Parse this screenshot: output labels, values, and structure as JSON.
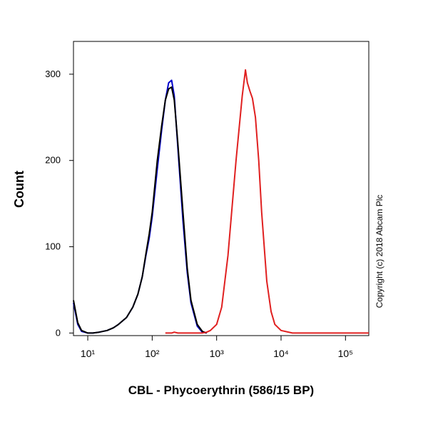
{
  "chart_data": {
    "type": "line",
    "xlabel": "CBL - Phycoerythrin (586/15 BP)",
    "ylabel": "Count",
    "annotation": "Copyright (c) 2018 Abcam Plc",
    "xscale": "log",
    "xlim": [
      6,
      230000
    ],
    "ylim": [
      -3,
      338
    ],
    "xticks": [
      {
        "value": 10,
        "label": "10¹"
      },
      {
        "value": 100,
        "label": "10²"
      },
      {
        "value": 1000,
        "label": "10³"
      },
      {
        "value": 10000,
        "label": "10⁴"
      },
      {
        "value": 100000,
        "label": "10⁵"
      }
    ],
    "yticks": [
      0,
      100,
      200,
      300
    ],
    "x": [
      6,
      7,
      8,
      10,
      12,
      15,
      20,
      25,
      30,
      40,
      50,
      60,
      70,
      80,
      90,
      100,
      120,
      140,
      160,
      180,
      200,
      220,
      250,
      300,
      350,
      400,
      500,
      600,
      700,
      800,
      1000,
      1200,
      1500,
      2000,
      2500,
      2800,
      3000,
      3300,
      3600,
      4000,
      4500,
      5000,
      6000,
      7000,
      8000,
      10000,
      15000,
      20000,
      50000,
      100000,
      230000
    ],
    "series": [
      {
        "color": "#0000cc",
        "values": [
          35,
          10,
          2,
          0,
          0,
          1,
          3,
          6,
          10,
          18,
          30,
          45,
          65,
          90,
          110,
          135,
          190,
          235,
          270,
          290,
          293,
          275,
          215,
          130,
          70,
          35,
          8,
          1,
          0,
          null,
          null,
          null,
          null,
          null,
          null,
          null,
          null,
          null,
          null,
          null,
          null,
          null,
          null,
          null,
          null,
          null,
          null,
          null,
          null,
          null,
          null
        ]
      },
      {
        "color": "#000000",
        "values": [
          38,
          12,
          3,
          0,
          0,
          1,
          3,
          6,
          10,
          18,
          30,
          45,
          65,
          92,
          115,
          140,
          200,
          240,
          270,
          283,
          285,
          270,
          220,
          140,
          75,
          38,
          10,
          2,
          0,
          null,
          null,
          null,
          null,
          null,
          null,
          null,
          null,
          null,
          null,
          null,
          null,
          null,
          null,
          null,
          null,
          null,
          null,
          null,
          null,
          null,
          null
        ]
      },
      {
        "color": "#e02020",
        "values": [
          null,
          null,
          null,
          null,
          null,
          null,
          null,
          null,
          null,
          null,
          null,
          null,
          null,
          null,
          null,
          null,
          null,
          null,
          0,
          0,
          0,
          1,
          0,
          0,
          0,
          0,
          0,
          0,
          1,
          3,
          10,
          30,
          90,
          200,
          275,
          305,
          290,
          280,
          272,
          250,
          200,
          140,
          60,
          25,
          10,
          3,
          0,
          0,
          0,
          0,
          0
        ]
      }
    ]
  }
}
